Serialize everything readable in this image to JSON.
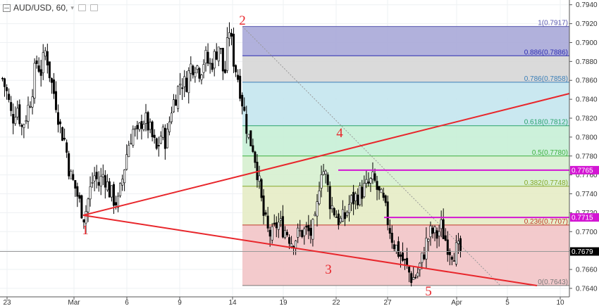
{
  "header": {
    "symbol": "AUD/USD, 60,",
    "dropdown_icon": "chevron-down-icon"
  },
  "colors": {
    "up_candle": "#ffffff",
    "down_candle": "#000000",
    "trendline": "#e8262b",
    "fib_zone_0": "#f2c4c7",
    "fib_zone_236": "#e6ecc5",
    "fib_zone_382": "#d6f0cf",
    "fib_zone_5": "#c6efd6",
    "fib_zone_618": "#c4e6ee",
    "fib_zone_786": "#d6d6d6",
    "fib_zone_886": "#a8a8d8",
    "hline_magenta": "#d316d3",
    "last_price_bg": "#000000"
  },
  "chart_data": {
    "type": "candlestick",
    "symbol": "AUD/USD",
    "interval": "60",
    "x_labels": [
      "23",
      "Mar",
      "6",
      "9",
      "14",
      "19",
      "22",
      "27",
      "Apr",
      "5",
      "10"
    ],
    "y_ticks": [
      "0.7940",
      "0.7920",
      "0.7900",
      "0.7880",
      "0.7860",
      "0.7840",
      "0.7820",
      "0.7800",
      "0.7780",
      "0.7760",
      "0.7740",
      "0.7720",
      "0.7700",
      "0.7680",
      "0.7660",
      "0.7640"
    ],
    "ylim": [
      0.7631,
      0.7945
    ],
    "price_path": [
      [
        0.7862,
        0.7845,
        0.7818,
        0.7835,
        0.781,
        0.7825
      ],
      [
        0.7845,
        0.788,
        0.787,
        0.7893,
        0.786,
        0.784
      ],
      [
        0.781,
        0.7795,
        0.776,
        0.7748,
        0.773,
        0.7715
      ],
      [
        0.774,
        0.776,
        0.775,
        0.7762,
        0.7745,
        0.7735
      ],
      [
        0.773,
        0.776,
        0.779,
        0.7808,
        0.78,
        0.782
      ],
      [
        0.7815,
        0.78,
        0.7785,
        0.7805,
        0.7795,
        0.783
      ],
      [
        0.7845,
        0.786,
        0.7855,
        0.7875,
        0.7878,
        0.787
      ],
      [
        0.7885,
        0.7875,
        0.7885,
        0.79,
        0.786,
        0.7917
      ],
      [
        0.788,
        0.786,
        0.783,
        0.78,
        0.779,
        0.776
      ],
      [
        0.772,
        0.77,
        0.7695,
        0.771,
        0.7705,
        0.77
      ],
      [
        0.769,
        0.7695,
        0.77,
        0.77,
        0.7698,
        0.771
      ],
      [
        0.777,
        0.776,
        0.773,
        0.772,
        0.771,
        0.7715
      ],
      [
        0.773,
        0.7735,
        0.774,
        0.7745,
        0.775,
        0.7755
      ],
      [
        0.774,
        0.773,
        0.771,
        0.769,
        0.768,
        0.767
      ],
      [
        0.766,
        0.765,
        0.7655,
        0.767,
        0.769,
        0.77
      ],
      [
        0.7695,
        0.7705,
        0.769,
        0.768,
        0.768,
        0.7679
      ]
    ],
    "price_lines": [
      {
        "label": "0.7765",
        "value": 0.7765
      },
      {
        "label": "0.7715",
        "value": 0.7715
      }
    ],
    "last_price": {
      "label": "0.7679",
      "value": 0.7679
    },
    "fib_retracement": {
      "levels": [
        {
          "ratio": "1",
          "price": "0.7917",
          "label": "1(0.7917)",
          "color": "#5b5bb0"
        },
        {
          "ratio": "0.886",
          "price": "0.7886",
          "label": "0.886(0.7886)",
          "color": "#2b2bb0"
        },
        {
          "ratio": "0.786",
          "price": "0.7858",
          "label": "0.786(0.7858)",
          "color": "#3a7fb8"
        },
        {
          "ratio": "0.618",
          "price": "0.7812",
          "label": "0.618(0.7812)",
          "color": "#2aa36a"
        },
        {
          "ratio": "0.5",
          "price": "0.7780",
          "label": "0.5(0.7780)",
          "color": "#3fb03f"
        },
        {
          "ratio": "0.382",
          "price": "0.7748",
          "label": "0.382(0.7748)",
          "color": "#86a82a"
        },
        {
          "ratio": "0.236",
          "price": "0.7707",
          "label": "0.236(0.7707)",
          "color": "#c0392b"
        },
        {
          "ratio": "0",
          "price": "0.7643",
          "label": "0(0.7643)",
          "color": "#777777"
        }
      ]
    },
    "wave_labels": [
      "1",
      "2",
      "3",
      "4",
      "5"
    ]
  }
}
